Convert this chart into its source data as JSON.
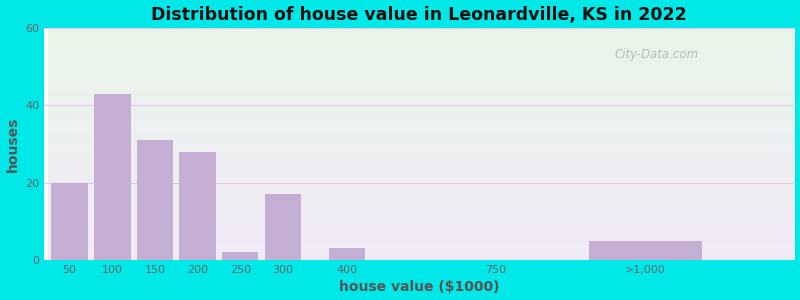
{
  "title": "Distribution of house value in Leonardville, KS in 2022",
  "xlabel": "house value ($1000)",
  "ylabel": "houses",
  "bar_color": "#c4aed4",
  "background_outer": "#00e8e8",
  "ylim": [
    0,
    60
  ],
  "yticks": [
    0,
    20,
    40,
    60
  ],
  "categories": [
    "50",
    "100",
    "150",
    "200",
    "250",
    "300",
    "400",
    "750",
    ">1,000"
  ],
  "heights": [
    20,
    43,
    31,
    28,
    2,
    17,
    3,
    0,
    5
  ],
  "bar_widths": [
    1,
    1,
    1,
    1,
    1,
    1,
    1,
    1,
    3
  ],
  "watermark": "City-Data.com",
  "grid_color": "#e8c8e8",
  "top_bg": "#e8f5e8",
  "bottom_bg": "#f2eaf8"
}
